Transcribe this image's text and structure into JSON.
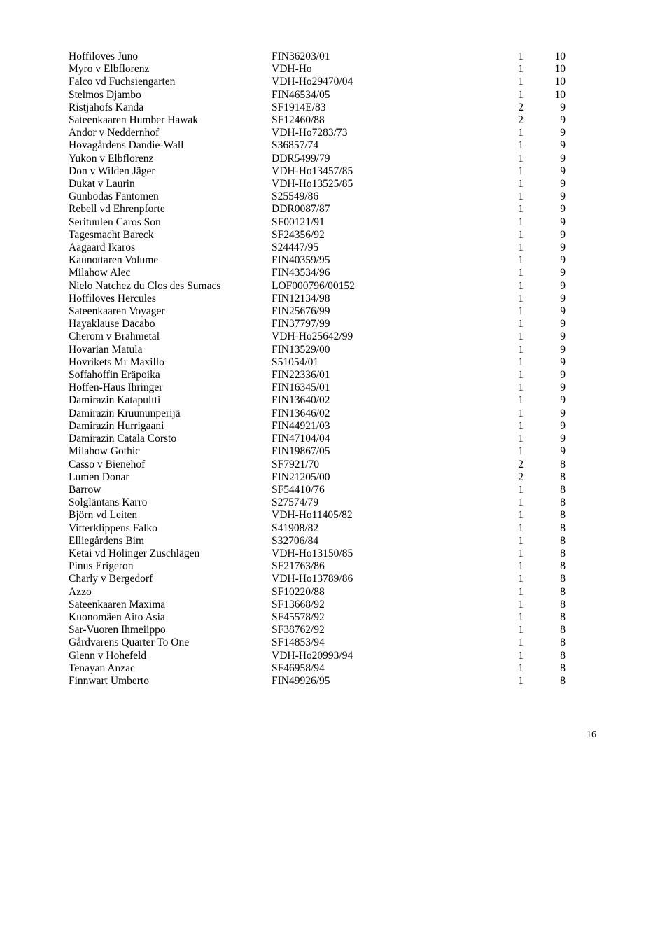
{
  "rows": [
    {
      "name": "Hoffiloves Juno",
      "reg": "FIN36203/01",
      "a": "1",
      "b": "10"
    },
    {
      "name": "Myro v Elbflorenz",
      "reg": "VDH-Ho",
      "a": "1",
      "b": "10"
    },
    {
      "name": "Falco vd Fuchsiengarten",
      "reg": "VDH-Ho29470/04",
      "a": "1",
      "b": "10"
    },
    {
      "name": "Stelmos Djambo",
      "reg": "FIN46534/05",
      "a": "1",
      "b": "10"
    },
    {
      "name": "Ristjahofs Kanda",
      "reg": "SF1914E/83",
      "a": "2",
      "b": "9"
    },
    {
      "name": "Sateenkaaren Humber Hawak",
      "reg": "SF12460/88",
      "a": "2",
      "b": "9"
    },
    {
      "name": "Andor v Neddernhof",
      "reg": "VDH-Ho7283/73",
      "a": "1",
      "b": "9"
    },
    {
      "name": "Hovagårdens Dandie-Wall",
      "reg": "S36857/74",
      "a": "1",
      "b": "9"
    },
    {
      "name": "Yukon v Elbflorenz",
      "reg": "DDR5499/79",
      "a": "1",
      "b": "9"
    },
    {
      "name": "Don v Wilden Jäger",
      "reg": "VDH-Ho13457/85",
      "a": "1",
      "b": "9"
    },
    {
      "name": "Dukat v Laurin",
      "reg": "VDH-Ho13525/85",
      "a": "1",
      "b": "9"
    },
    {
      "name": "Gunbodas Fantomen",
      "reg": "S25549/86",
      "a": "1",
      "b": "9"
    },
    {
      "name": "Rebell vd Ehrenpforte",
      "reg": "DDR0087/87",
      "a": "1",
      "b": "9"
    },
    {
      "name": "Serituulen Caros Son",
      "reg": "SF00121/91",
      "a": "1",
      "b": "9"
    },
    {
      "name": "Tagesmacht Bareck",
      "reg": "SF24356/92",
      "a": "1",
      "b": "9"
    },
    {
      "name": "Aagaard Ikaros",
      "reg": "S24447/95",
      "a": "1",
      "b": "9"
    },
    {
      "name": "Kaunottaren Volume",
      "reg": "FIN40359/95",
      "a": "1",
      "b": "9"
    },
    {
      "name": "Milahow Alec",
      "reg": "FIN43534/96",
      "a": "1",
      "b": "9"
    },
    {
      "name": "Nielo Natchez du Clos des Sumacs",
      "reg": "LOF000796/00152",
      "a": "1",
      "b": "9"
    },
    {
      "name": "Hoffiloves Hercules",
      "reg": "FIN12134/98",
      "a": "1",
      "b": "9"
    },
    {
      "name": "Sateenkaaren Voyager",
      "reg": "FIN25676/99",
      "a": "1",
      "b": "9"
    },
    {
      "name": "Hayaklause Dacabo",
      "reg": "FIN37797/99",
      "a": "1",
      "b": "9"
    },
    {
      "name": "Cherom v Brahmetal",
      "reg": "VDH-Ho25642/99",
      "a": "1",
      "b": "9"
    },
    {
      "name": "Hovarian Matula",
      "reg": "FIN13529/00",
      "a": "1",
      "b": "9"
    },
    {
      "name": "Hovrikets Mr Maxillo",
      "reg": "S51054/01",
      "a": "1",
      "b": "9"
    },
    {
      "name": "Soffahoffin Eräpoika",
      "reg": "FIN22336/01",
      "a": "1",
      "b": "9"
    },
    {
      "name": "Hoffen-Haus Ihringer",
      "reg": "FIN16345/01",
      "a": "1",
      "b": "9"
    },
    {
      "name": "Damirazin Katapultti",
      "reg": "FIN13640/02",
      "a": "1",
      "b": "9"
    },
    {
      "name": "Damirazin Kruununperijä",
      "reg": "FIN13646/02",
      "a": "1",
      "b": "9"
    },
    {
      "name": "Damirazin Hurrigaani",
      "reg": "FIN44921/03",
      "a": "1",
      "b": "9"
    },
    {
      "name": "Damirazin Catala Corsto",
      "reg": "FIN47104/04",
      "a": "1",
      "b": "9"
    },
    {
      "name": "Milahow Gothic",
      "reg": "FIN19867/05",
      "a": "1",
      "b": "9"
    },
    {
      "name": "Casso v Bienehof",
      "reg": "SF7921/70",
      "a": "2",
      "b": "8"
    },
    {
      "name": "Lumen Donar",
      "reg": "FIN21205/00",
      "a": "2",
      "b": "8"
    },
    {
      "name": "Barrow",
      "reg": "SF54410/76",
      "a": "1",
      "b": "8"
    },
    {
      "name": "Solgläntans Karro",
      "reg": "S27574/79",
      "a": "1",
      "b": "8"
    },
    {
      "name": "Björn vd Leiten",
      "reg": "VDH-Ho11405/82",
      "a": "1",
      "b": "8"
    },
    {
      "name": "Vitterklippens Falko",
      "reg": "S41908/82",
      "a": "1",
      "b": "8"
    },
    {
      "name": "Elliegårdens Bim",
      "reg": "S32706/84",
      "a": "1",
      "b": "8"
    },
    {
      "name": "Ketai vd Hölinger Zuschlägen",
      "reg": "VDH-Ho13150/85",
      "a": "1",
      "b": "8"
    },
    {
      "name": "Pinus Erigeron",
      "reg": "SF21763/86",
      "a": "1",
      "b": "8"
    },
    {
      "name": "Charly v Bergedorf",
      "reg": "VDH-Ho13789/86",
      "a": "1",
      "b": "8"
    },
    {
      "name": "Azzo",
      "reg": "SF10220/88",
      "a": "1",
      "b": "8"
    },
    {
      "name": "Sateenkaaren Maxima",
      "reg": "SF13668/92",
      "a": "1",
      "b": "8"
    },
    {
      "name": "Kuonomäen Aito Asia",
      "reg": "SF45578/92",
      "a": "1",
      "b": "8"
    },
    {
      "name": "Sar-Vuoren Ihmeiippo",
      "reg": "SF38762/92",
      "a": "1",
      "b": "8"
    },
    {
      "name": "Gårdvarens Quarter To One",
      "reg": "SF14853/94",
      "a": "1",
      "b": "8"
    },
    {
      "name": "Glenn v Hohefeld",
      "reg": "VDH-Ho20993/94",
      "a": "1",
      "b": "8"
    },
    {
      "name": "Tenayan Anzac",
      "reg": "SF46958/94",
      "a": "1",
      "b": "8"
    },
    {
      "name": "Finnwart Umberto",
      "reg": "FIN49926/95",
      "a": "1",
      "b": "8"
    }
  ],
  "page_number": "16"
}
